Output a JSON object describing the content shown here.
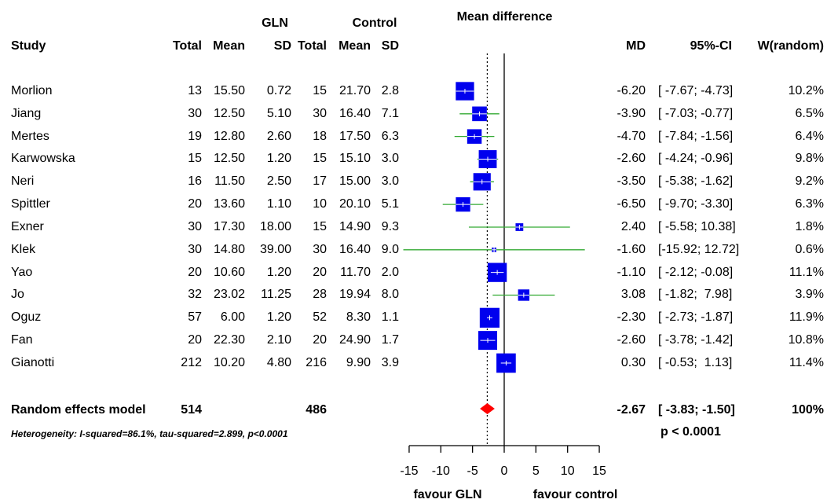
{
  "chart_data": {
    "type": "forest",
    "header": {
      "study": "Study",
      "group1": "GLN",
      "group2": "Control",
      "total1": "Total",
      "mean1": "Mean",
      "sd1": "SD",
      "total2": "Total",
      "mean2": "Mean",
      "sd2": "SD",
      "plot_title": "Mean difference",
      "md": "MD",
      "ci": "95%-CI",
      "weight": "W(random)"
    },
    "studies": [
      {
        "name": "Morlion",
        "n1": "13",
        "m1": "15.50",
        "sd1": "0.72",
        "n2": "15",
        "m2": "21.70",
        "sd2": "2.8",
        "md": -6.2,
        "lo": -7.67,
        "hi": -4.73,
        "md_text": "-6.20",
        "ci_text": "[ -7.67; -4.73]",
        "w_text": "10.2%",
        "w": 10.2
      },
      {
        "name": "Jiang",
        "n1": "30",
        "m1": "12.50",
        "sd1": "5.10",
        "n2": "30",
        "m2": "16.40",
        "sd2": "7.1",
        "md": -3.9,
        "lo": -7.03,
        "hi": -0.77,
        "md_text": "-3.90",
        "ci_text": "[ -7.03; -0.77]",
        "w_text": "6.5%",
        "w": 6.5
      },
      {
        "name": "Mertes",
        "n1": "19",
        "m1": "12.80",
        "sd1": "2.60",
        "n2": "18",
        "m2": "17.50",
        "sd2": "6.3",
        "md": -4.7,
        "lo": -7.84,
        "hi": -1.56,
        "md_text": "-4.70",
        "ci_text": "[ -7.84; -1.56]",
        "w_text": "6.4%",
        "w": 6.4
      },
      {
        "name": "Karwowska",
        "n1": "15",
        "m1": "12.50",
        "sd1": "1.20",
        "n2": "15",
        "m2": "15.10",
        "sd2": "3.0",
        "md": -2.6,
        "lo": -4.24,
        "hi": -0.96,
        "md_text": "-2.60",
        "ci_text": "[ -4.24; -0.96]",
        "w_text": "9.8%",
        "w": 9.8
      },
      {
        "name": "Neri",
        "n1": "16",
        "m1": "11.50",
        "sd1": "2.50",
        "n2": "17",
        "m2": "15.00",
        "sd2": "3.0",
        "md": -3.5,
        "lo": -5.38,
        "hi": -1.62,
        "md_text": "-3.50",
        "ci_text": "[ -5.38; -1.62]",
        "w_text": "9.2%",
        "w": 9.2
      },
      {
        "name": "Spittler",
        "n1": "20",
        "m1": "13.60",
        "sd1": "1.10",
        "n2": "10",
        "m2": "20.10",
        "sd2": "5.1",
        "md": -6.5,
        "lo": -9.7,
        "hi": -3.3,
        "md_text": "-6.50",
        "ci_text": "[ -9.70; -3.30]",
        "w_text": "6.3%",
        "w": 6.3
      },
      {
        "name": "Exner",
        "n1": "30",
        "m1": "17.30",
        "sd1": "18.00",
        "n2": "15",
        "m2": "14.90",
        "sd2": "9.3",
        "md": 2.4,
        "lo": -5.58,
        "hi": 10.38,
        "md_text": "2.40",
        "ci_text": "[ -5.58; 10.38]",
        "w_text": "1.8%",
        "w": 1.8
      },
      {
        "name": "Klek",
        "n1": "30",
        "m1": "14.80",
        "sd1": "39.00",
        "n2": "30",
        "m2": "16.40",
        "sd2": "9.0",
        "md": -1.6,
        "lo": -15.92,
        "hi": 12.72,
        "md_text": "-1.60",
        "ci_text": "[-15.92; 12.72]",
        "w_text": "0.6%",
        "w": 0.6
      },
      {
        "name": "Yao",
        "n1": "20",
        "m1": "10.60",
        "sd1": "1.20",
        "n2": "20",
        "m2": "11.70",
        "sd2": "2.0",
        "md": -1.1,
        "lo": -2.12,
        "hi": -0.08,
        "md_text": "-1.10",
        "ci_text": "[ -2.12; -0.08]",
        "w_text": "11.1%",
        "w": 11.1
      },
      {
        "name": "Jo",
        "n1": "32",
        "m1": "23.02",
        "sd1": "11.25",
        "n2": "28",
        "m2": "19.94",
        "sd2": "8.0",
        "md": 3.08,
        "lo": -1.82,
        "hi": 7.98,
        "md_text": "3.08",
        "ci_text": "[ -1.82;  7.98]",
        "w_text": "3.9%",
        "w": 3.9
      },
      {
        "name": "Oguz",
        "n1": "57",
        "m1": "6.00",
        "sd1": "1.20",
        "n2": "52",
        "m2": "8.30",
        "sd2": "1.1",
        "md": -2.3,
        "lo": -2.73,
        "hi": -1.87,
        "md_text": "-2.30",
        "ci_text": "[ -2.73; -1.87]",
        "w_text": "11.9%",
        "w": 11.9
      },
      {
        "name": "Fan",
        "n1": "20",
        "m1": "22.30",
        "sd1": "2.10",
        "n2": "20",
        "m2": "24.90",
        "sd2": "1.7",
        "md": -2.6,
        "lo": -3.78,
        "hi": -1.42,
        "md_text": "-2.60",
        "ci_text": "[ -3.78; -1.42]",
        "w_text": "10.8%",
        "w": 10.8
      },
      {
        "name": "Gianotti",
        "n1": "212",
        "m1": "10.20",
        "sd1": "4.80",
        "n2": "216",
        "m2": "9.90",
        "sd2": "3.9",
        "md": 0.3,
        "lo": -0.53,
        "hi": 1.13,
        "md_text": "0.30",
        "ci_text": "[ -0.53;  1.13]",
        "w_text": "11.4%",
        "w": 11.4
      }
    ],
    "pooled": {
      "label": "Random effects model",
      "n1": "514",
      "n2": "486",
      "md": -2.67,
      "lo": -3.83,
      "hi": -1.5,
      "md_text": "-2.67",
      "ci_text": "[ -3.83; -1.50]",
      "w_text": "100%",
      "p_text": "p < 0.0001",
      "heterogeneity": "Heterogeneity: I-squared=86.1%, tau-squared=2.899, p<0.0001"
    },
    "x_axis": {
      "ticks": [
        -15,
        -10,
        -5,
        0,
        5,
        10,
        15
      ],
      "xlim": [
        -15,
        15
      ],
      "left_label": "favour GLN",
      "right_label": "favour control"
    },
    "colors": {
      "box": "#0000ee",
      "ci_line": "#33aa33",
      "diamond": "#ff0000",
      "axis": "#000000"
    }
  }
}
